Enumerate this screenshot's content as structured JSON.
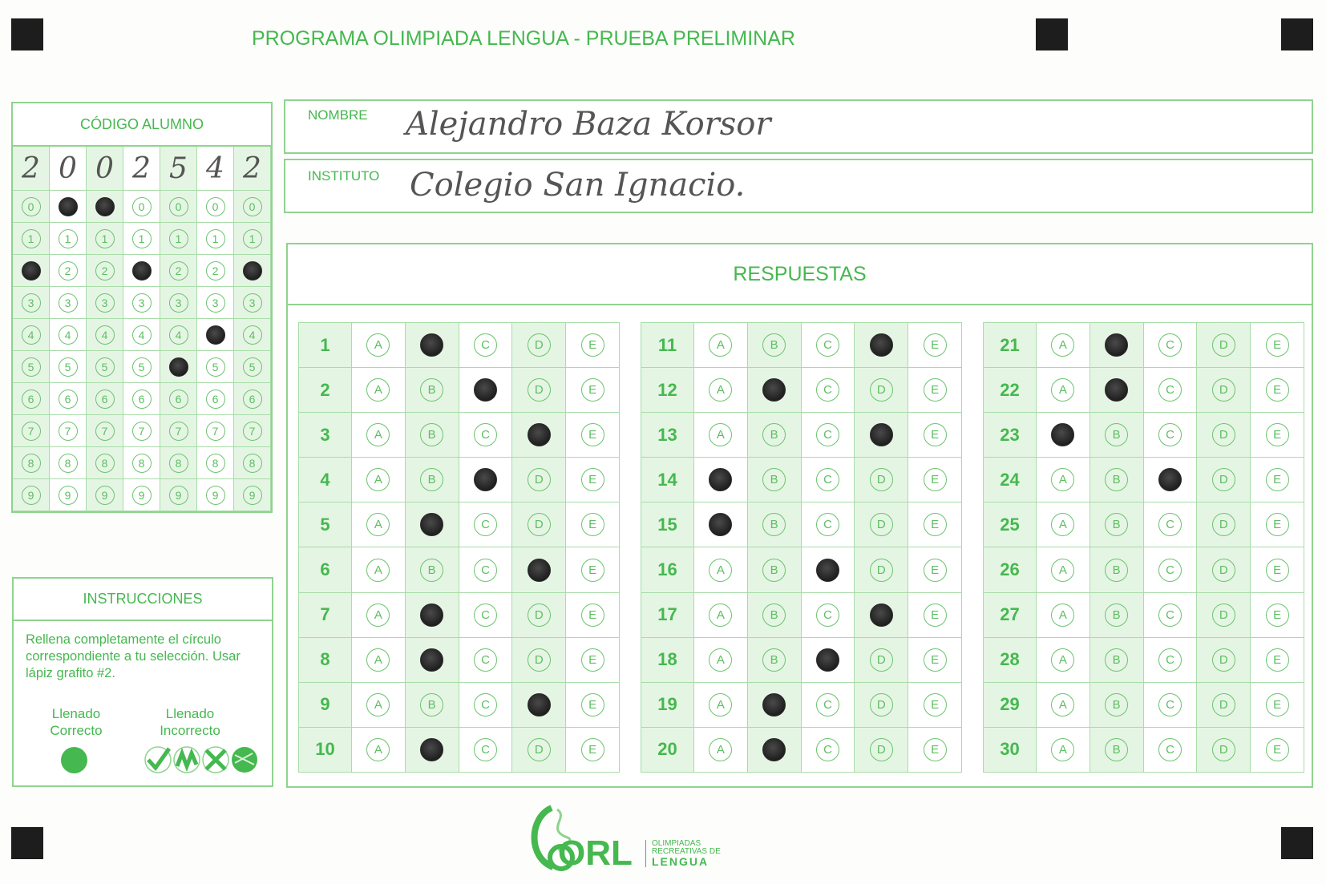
{
  "header": {
    "title": "PROGRAMA OLIMPIADA LENGUA  - PRUEBA PRELIMINAR"
  },
  "student_code": {
    "title": "CÓDIGO ALUMNO",
    "handwritten_digits": [
      "2",
      "0",
      "0",
      "2",
      "5",
      "4",
      "2"
    ],
    "bubble_digits": [
      "0",
      "1",
      "2",
      "3",
      "4",
      "5",
      "6",
      "7",
      "8",
      "9"
    ],
    "marked": [
      2,
      0,
      0,
      2,
      5,
      4,
      2
    ]
  },
  "fields": {
    "name_label": "NOMBRE",
    "name_value": "Alejandro Baza Korsor",
    "institute_label": "INSTITUTO",
    "institute_value": "Colegio San Ignacio."
  },
  "answers": {
    "title": "RESPUESTAS",
    "options": [
      "A",
      "B",
      "C",
      "D",
      "E"
    ],
    "marked": [
      "B",
      "C",
      "D",
      "C",
      "B",
      "D",
      "B",
      "B",
      "D",
      "B",
      "D",
      "B",
      "D",
      "A",
      "A",
      "C",
      "D",
      "C",
      "B",
      "B",
      "B",
      "B",
      "A",
      "C",
      null,
      null,
      null,
      null,
      null,
      null
    ]
  },
  "instructions": {
    "title": "INSTRUCCIONES",
    "text": "Rellena completamente el círculo correspondiente a tu selección. Usar lápiz grafito #2.",
    "correct_label": "Llenado Correcto",
    "incorrect_label": "Llenado Incorrecto"
  },
  "logo": {
    "mark": "ORL",
    "line1": "OLIMPIADAS",
    "line2": "RECREATIVAS DE",
    "line3": "LENGUA"
  },
  "colors": {
    "form_green": "#45b84f",
    "grid_line": "#a8dca8",
    "shade": "#e5f5e3",
    "pencil": "#2a2a2a"
  }
}
